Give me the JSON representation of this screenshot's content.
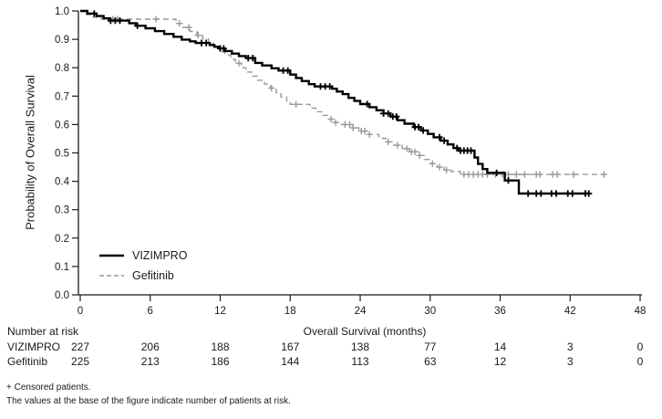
{
  "footnotes": [
    "+ Censored patients.",
    "The values at the base of the figure indicate number of patients at risk."
  ],
  "chart_data": {
    "type": "line",
    "subtype": "kaplan-meier-step",
    "title": "",
    "xlabel": "Overall Survival (months)",
    "ylabel": "Probability of Overall Survival",
    "xlim": [
      0,
      48
    ],
    "ylim": [
      0.0,
      1.0
    ],
    "grid": false,
    "legend_position": "lower-left-inside",
    "x_ticks": [
      0,
      6,
      12,
      18,
      24,
      30,
      36,
      42,
      48
    ],
    "x_tick_labels": [
      "0",
      "6",
      "12",
      "18",
      "24",
      "30",
      "36",
      "42",
      "48"
    ],
    "y_ticks": [
      0.0,
      0.1,
      0.2,
      0.3,
      0.4,
      0.5,
      0.6,
      0.7,
      0.8,
      0.9,
      1.0
    ],
    "y_tick_labels": [
      "0.0",
      "0.1",
      "0.2",
      "0.3",
      "0.4",
      "0.5",
      "0.6",
      "0.7",
      "0.8",
      "0.9",
      "1.0"
    ],
    "censor_symbol": "+",
    "series": [
      {
        "name": "VIZIMPRO",
        "color": "#000000",
        "line_style": "solid",
        "line_width": 2.4,
        "end_x": 43.7,
        "steps": [
          [
            0,
            1.0
          ],
          [
            0.6,
            0.991
          ],
          [
            1.4,
            0.982
          ],
          [
            2.0,
            0.974
          ],
          [
            2.5,
            0.966
          ],
          [
            4.2,
            0.957
          ],
          [
            4.8,
            0.948
          ],
          [
            5.6,
            0.939
          ],
          [
            6.4,
            0.929
          ],
          [
            7.2,
            0.919
          ],
          [
            8.0,
            0.909
          ],
          [
            8.7,
            0.899
          ],
          [
            9.4,
            0.893
          ],
          [
            9.9,
            0.887
          ],
          [
            11.1,
            0.88
          ],
          [
            11.5,
            0.874
          ],
          [
            11.9,
            0.868
          ],
          [
            12.4,
            0.859
          ],
          [
            13.0,
            0.85
          ],
          [
            13.6,
            0.841
          ],
          [
            14.2,
            0.834
          ],
          [
            15.0,
            0.817
          ],
          [
            15.6,
            0.808
          ],
          [
            16.4,
            0.798
          ],
          [
            17.0,
            0.79
          ],
          [
            18.0,
            0.776
          ],
          [
            18.5,
            0.764
          ],
          [
            19.0,
            0.753
          ],
          [
            19.6,
            0.742
          ],
          [
            20.1,
            0.734
          ],
          [
            21.6,
            0.726
          ],
          [
            22.0,
            0.716
          ],
          [
            22.5,
            0.707
          ],
          [
            23.0,
            0.694
          ],
          [
            23.5,
            0.683
          ],
          [
            24.0,
            0.672
          ],
          [
            24.8,
            0.661
          ],
          [
            25.4,
            0.65
          ],
          [
            26.0,
            0.639
          ],
          [
            26.6,
            0.628
          ],
          [
            27.2,
            0.615
          ],
          [
            27.8,
            0.603
          ],
          [
            28.6,
            0.591
          ],
          [
            29.2,
            0.579
          ],
          [
            29.8,
            0.567
          ],
          [
            30.3,
            0.555
          ],
          [
            30.9,
            0.543
          ],
          [
            31.5,
            0.53
          ],
          [
            32.0,
            0.517
          ],
          [
            32.4,
            0.508
          ],
          [
            33.8,
            0.484
          ],
          [
            34.1,
            0.461
          ],
          [
            34.5,
            0.443
          ],
          [
            34.9,
            0.43
          ],
          [
            36.4,
            0.403
          ],
          [
            37.6,
            0.357
          ]
        ],
        "censor_marks": [
          1.2,
          2.6,
          3.0,
          3.4,
          4.9,
          10.4,
          10.8,
          12.0,
          12.3,
          14.4,
          14.8,
          17.4,
          17.8,
          20.6,
          21.0,
          21.4,
          24.6,
          26.0,
          26.4,
          26.8,
          27.1,
          28.7,
          29.0,
          29.4,
          30.8,
          31.2,
          32.3,
          32.6,
          32.9,
          33.2,
          33.5,
          35.7,
          36.7,
          38.4,
          39.1,
          39.5,
          40.4,
          40.8,
          41.8,
          42.2,
          43.3,
          43.6
        ]
      },
      {
        "name": "Gefitinib",
        "color": "#999999",
        "line_style": "dashed",
        "line_width": 1.4,
        "end_x": 44.9,
        "steps": [
          [
            0,
            1.0
          ],
          [
            0.4,
            0.987
          ],
          [
            1.1,
            0.978
          ],
          [
            1.8,
            0.971
          ],
          [
            8.2,
            0.956
          ],
          [
            8.8,
            0.942
          ],
          [
            9.4,
            0.928
          ],
          [
            10.0,
            0.914
          ],
          [
            10.5,
            0.902
          ],
          [
            11.0,
            0.89
          ],
          [
            11.4,
            0.879
          ],
          [
            11.8,
            0.868
          ],
          [
            12.1,
            0.856
          ],
          [
            12.4,
            0.845
          ],
          [
            12.9,
            0.83
          ],
          [
            13.3,
            0.816
          ],
          [
            13.8,
            0.8
          ],
          [
            14.2,
            0.785
          ],
          [
            14.7,
            0.77
          ],
          [
            15.2,
            0.756
          ],
          [
            15.8,
            0.742
          ],
          [
            16.3,
            0.728
          ],
          [
            16.8,
            0.712
          ],
          [
            17.2,
            0.697
          ],
          [
            17.7,
            0.683
          ],
          [
            18.0,
            0.671
          ],
          [
            19.7,
            0.658
          ],
          [
            20.2,
            0.645
          ],
          [
            20.7,
            0.632
          ],
          [
            21.2,
            0.619
          ],
          [
            21.8,
            0.607
          ],
          [
            22.4,
            0.6
          ],
          [
            23.4,
            0.588
          ],
          [
            23.9,
            0.577
          ],
          [
            24.6,
            0.565
          ],
          [
            25.6,
            0.551
          ],
          [
            26.2,
            0.539
          ],
          [
            26.8,
            0.527
          ],
          [
            27.6,
            0.515
          ],
          [
            28.2,
            0.504
          ],
          [
            29.0,
            0.491
          ],
          [
            29.5,
            0.477
          ],
          [
            30.0,
            0.462
          ],
          [
            30.6,
            0.45
          ],
          [
            31.2,
            0.44
          ],
          [
            31.8,
            0.434
          ],
          [
            32.6,
            0.424
          ]
        ],
        "censor_marks": [
          2.8,
          3.2,
          6.5,
          8.5,
          9.3,
          10.1,
          13.6,
          16.4,
          18.5,
          21.5,
          21.9,
          22.7,
          23.1,
          23.4,
          24.1,
          24.4,
          24.8,
          26.4,
          27.2,
          28.0,
          28.4,
          28.7,
          29.1,
          30.2,
          30.8,
          31.4,
          32.9,
          33.3,
          33.7,
          34.1,
          34.5,
          34.9,
          35.6,
          36.2,
          36.7,
          37.4,
          38.1,
          39.1,
          39.4,
          40.5,
          40.9,
          42.3,
          44.9
        ]
      }
    ],
    "number_at_risk": {
      "title": "Number at risk",
      "columns": [
        0,
        6,
        12,
        18,
        24,
        30,
        36,
        42,
        48
      ],
      "rows": [
        {
          "label": "VIZIMPRO",
          "values": [
            "227",
            "206",
            "188",
            "167",
            "138",
            "77",
            "14",
            "3",
            "0"
          ]
        },
        {
          "label": "Gefitinib",
          "values": [
            "225",
            "213",
            "186",
            "144",
            "113",
            "63",
            "12",
            "3",
            "0"
          ]
        }
      ]
    }
  }
}
